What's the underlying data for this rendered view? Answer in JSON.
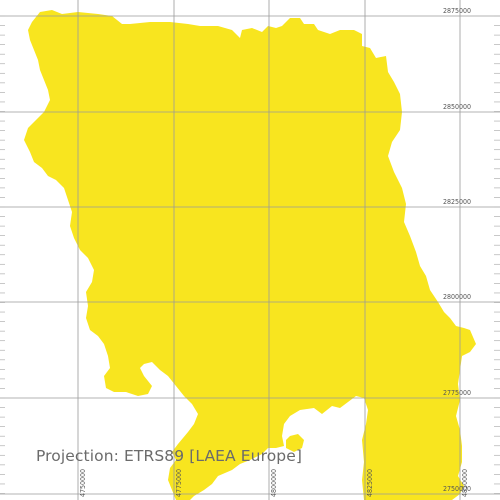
{
  "map": {
    "fill_color": "#f8e51f",
    "grid_color": "#9a9a9a",
    "background": "#ffffff",
    "projection_label": "Projection: ETRS89 [LAEA Europe]",
    "northing_labels": [
      "2875000",
      "2850000",
      "2825000",
      "2800000",
      "2775000",
      "2750000"
    ],
    "easting_labels": [
      "4750000",
      "4775000",
      "4800000",
      "4825000",
      "4850000"
    ]
  }
}
